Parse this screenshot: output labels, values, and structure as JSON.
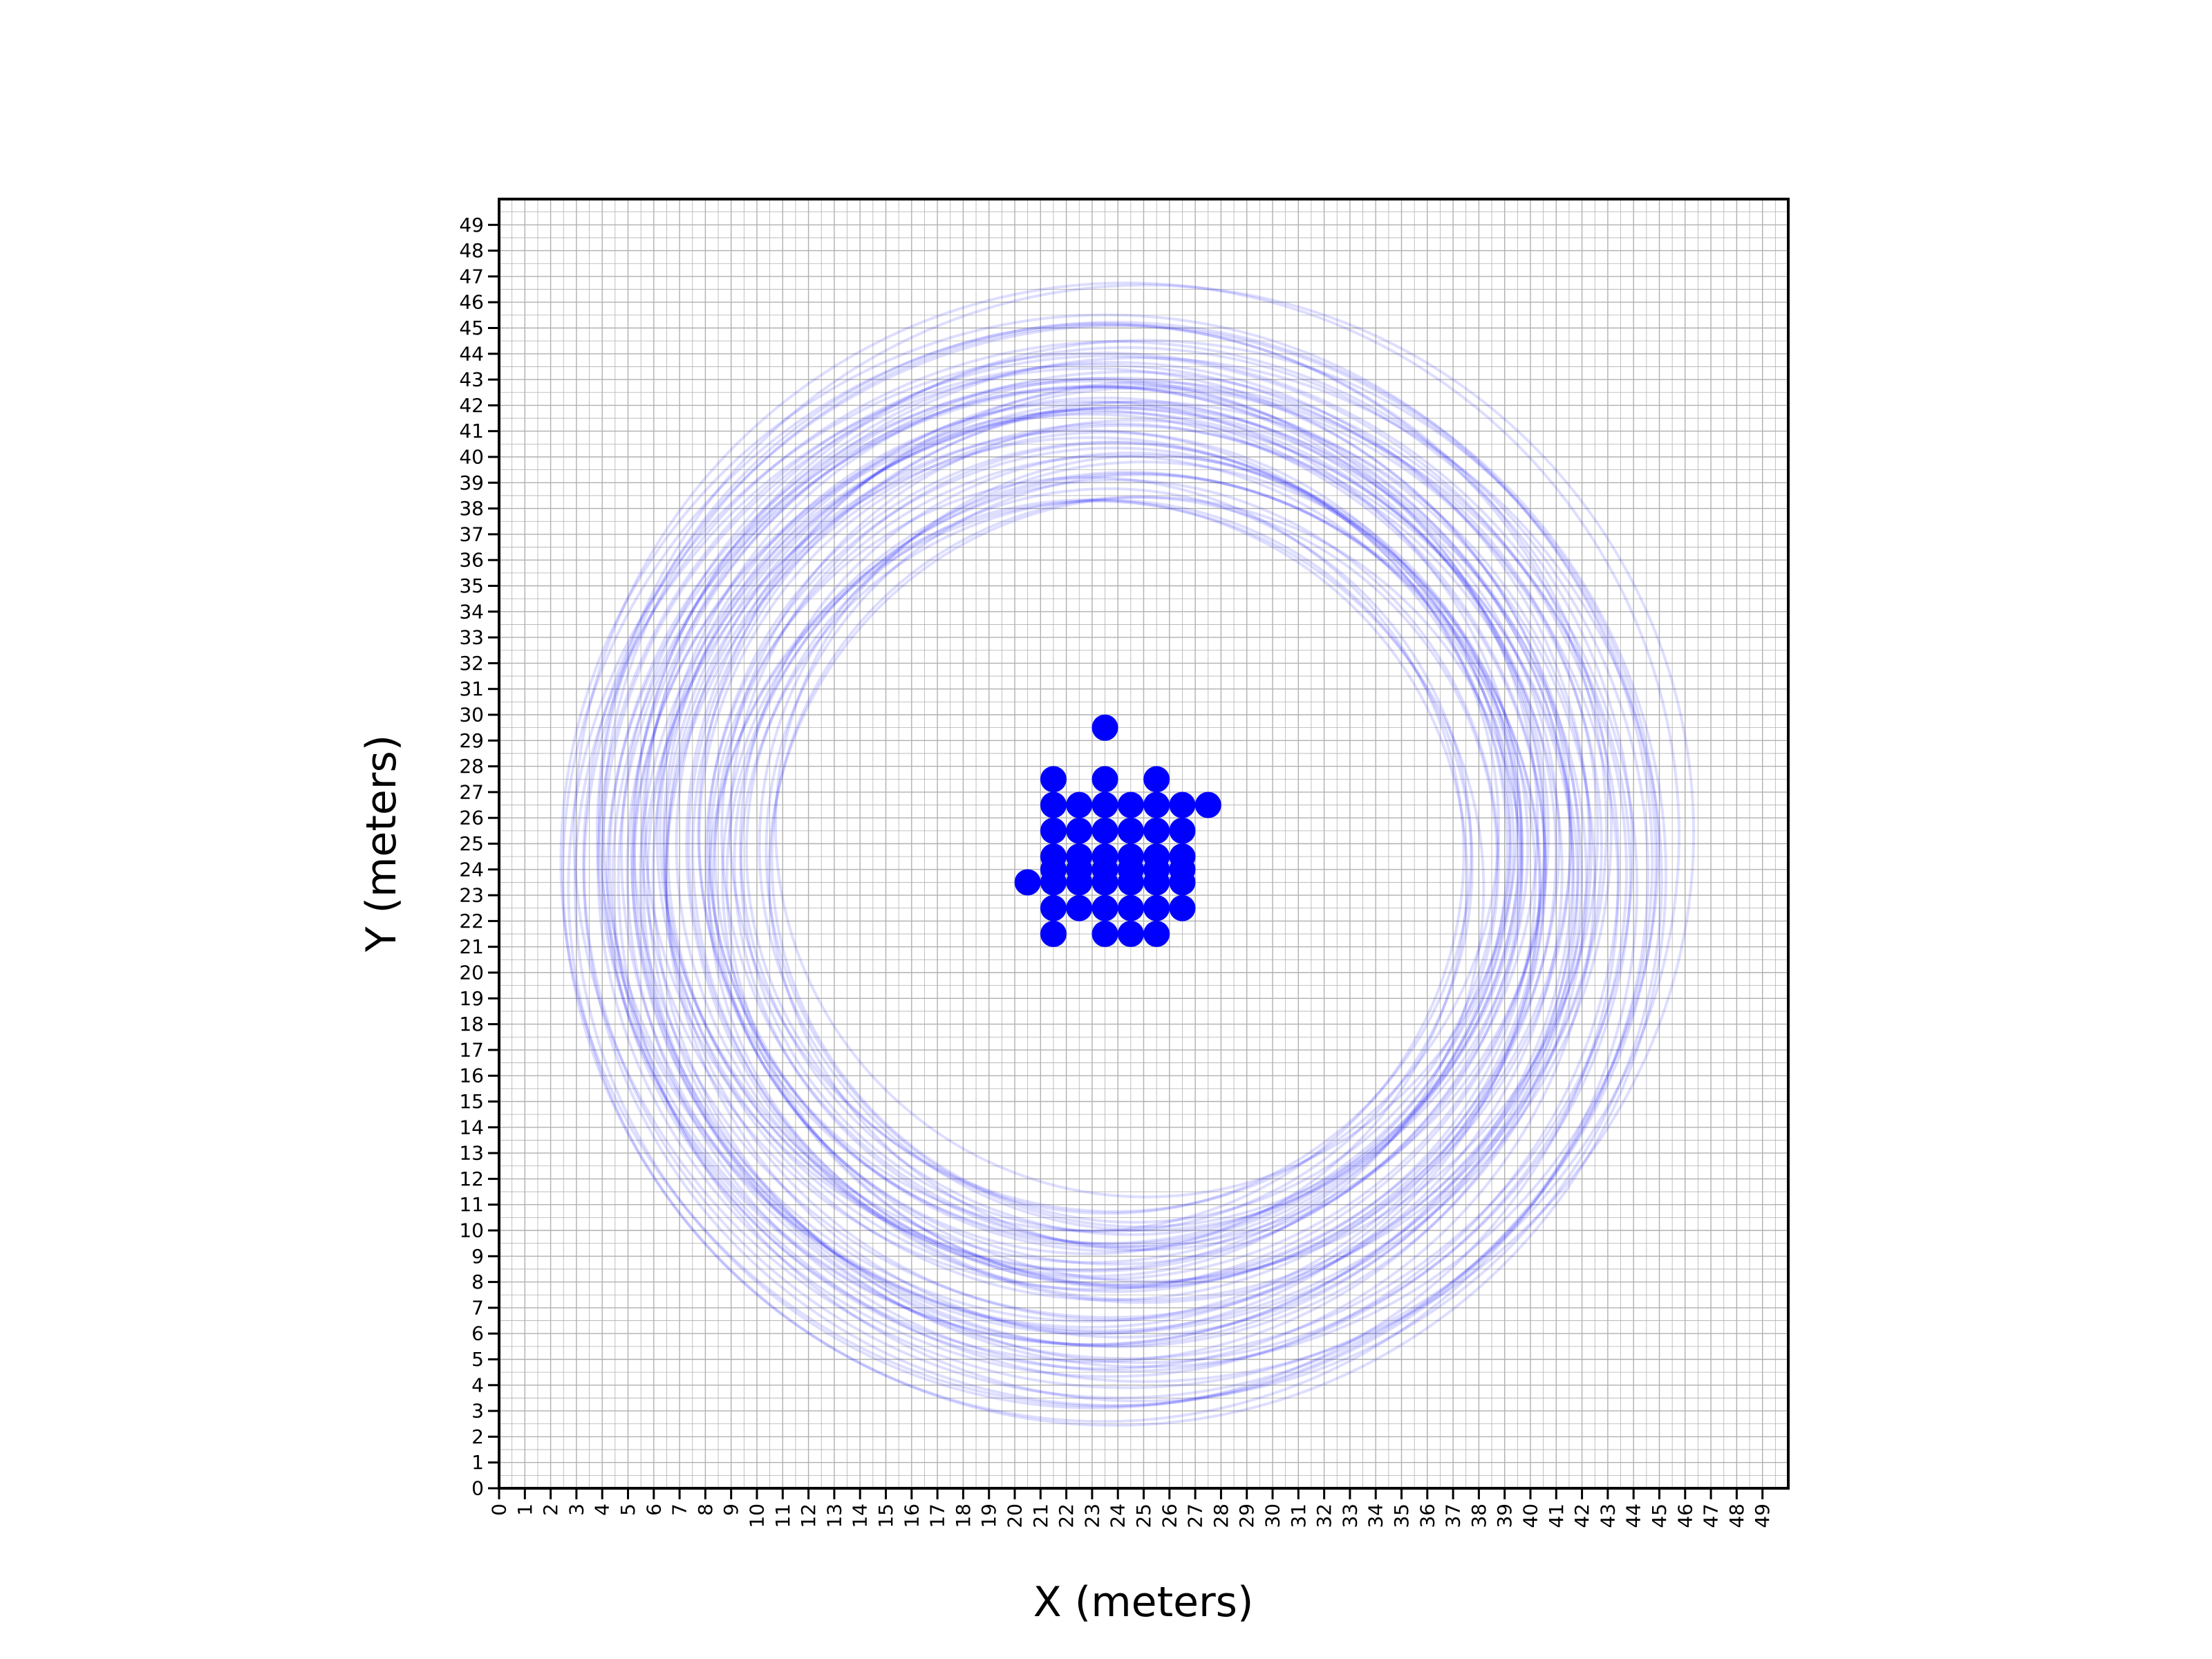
{
  "chart_data": {
    "type": "scatter",
    "title": "",
    "xlabel": "X (meters)",
    "ylabel": "Y (meters)",
    "xlim": [
      0,
      50
    ],
    "ylim": [
      0,
      50
    ],
    "xticks": [
      0,
      1,
      2,
      3,
      4,
      5,
      6,
      7,
      8,
      9,
      10,
      11,
      12,
      13,
      14,
      15,
      16,
      17,
      18,
      19,
      20,
      21,
      22,
      23,
      24,
      25,
      26,
      27,
      28,
      29,
      30,
      31,
      32,
      33,
      34,
      35,
      36,
      37,
      38,
      39,
      40,
      41,
      42,
      43,
      44,
      45,
      46,
      47,
      48,
      49
    ],
    "yticks": [
      0,
      1,
      2,
      3,
      4,
      5,
      6,
      7,
      8,
      9,
      10,
      11,
      12,
      13,
      14,
      15,
      16,
      17,
      18,
      19,
      20,
      21,
      22,
      23,
      24,
      25,
      26,
      27,
      28,
      29,
      30,
      31,
      32,
      33,
      34,
      35,
      36,
      37,
      38,
      39,
      40,
      41,
      42,
      43,
      44,
      45,
      46,
      47,
      48,
      49
    ],
    "grid": true,
    "points": {
      "color": "#0000ff",
      "x": [
        23.5,
        21.5,
        23.5,
        25.5,
        21.5,
        22.5,
        23.5,
        24.5,
        25.5,
        26.5,
        27.5,
        21.5,
        22.5,
        23.5,
        24.5,
        25.5,
        26.5,
        21.5,
        22.5,
        23.5,
        24.5,
        25.5,
        26.5,
        21.5,
        22.5,
        23.5,
        24.5,
        25.5,
        26.5,
        20.5,
        21.5,
        22.5,
        23.5,
        24.5,
        25.5,
        26.5,
        21.5,
        22.5,
        23.5,
        24.5,
        25.5,
        26.5,
        21.5,
        23.5,
        24.5,
        25.5
      ],
      "y": [
        29.5,
        27.5,
        27.5,
        27.5,
        26.5,
        26.5,
        26.5,
        26.5,
        26.5,
        26.5,
        26.5,
        25.5,
        25.5,
        25.5,
        25.5,
        25.5,
        25.5,
        24.5,
        24.5,
        24.5,
        24.5,
        24.5,
        24.5,
        24,
        24,
        24,
        24,
        24,
        24,
        23.5,
        23.5,
        23.5,
        23.5,
        23.5,
        23.5,
        23.5,
        22.5,
        22.5,
        22.5,
        22.5,
        22.5,
        22.5,
        21.5,
        21.5,
        21.5,
        21.5
      ]
    },
    "rings": {
      "color": "#0000ff",
      "center": [
        24,
        24.5
      ],
      "count": 60,
      "radius_range": [
        14,
        21.5
      ]
    }
  }
}
